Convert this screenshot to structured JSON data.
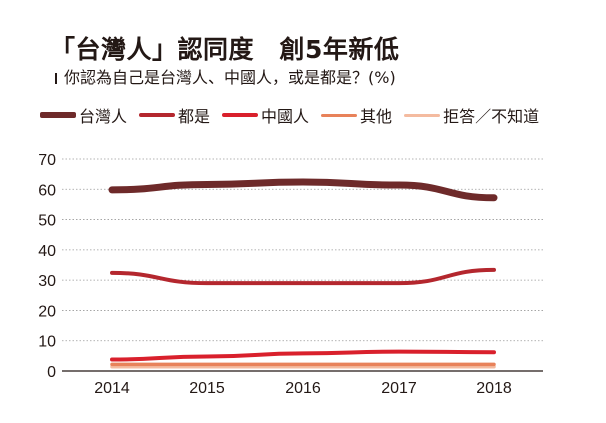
{
  "title": "「台灣人」認同度　創5年新低",
  "subtitle": "你認為自己是台灣人、中國人，或是都是？(%)",
  "chart_data": {
    "type": "line",
    "title": "「台灣人」認同度　創5年新低",
    "subtitle": "你認為自己是台灣人、中國人，或是都是？(%)",
    "categories": [
      "2014",
      "2015",
      "2016",
      "2017",
      "2018"
    ],
    "ylim": [
      0,
      70
    ],
    "yticks": [
      0,
      10,
      20,
      30,
      40,
      50,
      60,
      70
    ],
    "grid": true,
    "legend_position": "top",
    "series": [
      {
        "name": "台灣人",
        "values": [
          59.8,
          61.6,
          62.4,
          61.4,
          57.2
        ],
        "color": "#6e2a2a",
        "width": 7
      },
      {
        "name": "都是",
        "values": [
          32.4,
          29,
          29,
          29,
          33.4
        ],
        "color": "#b4272e",
        "width": 4
      },
      {
        "name": "中國人",
        "values": [
          3.8,
          4.8,
          5.8,
          6.4,
          6.2
        ],
        "color": "#d9202c",
        "width": 4
      },
      {
        "name": "其他",
        "values": [
          2.2,
          2.2,
          2.2,
          2.2,
          2.2
        ],
        "color": "#e8825a",
        "width": 3.5
      },
      {
        "name": "拒答／不知道",
        "values": [
          1.4,
          1.4,
          1.4,
          1.4,
          1.4
        ],
        "color": "#f4bba0",
        "width": 3.5
      }
    ]
  }
}
